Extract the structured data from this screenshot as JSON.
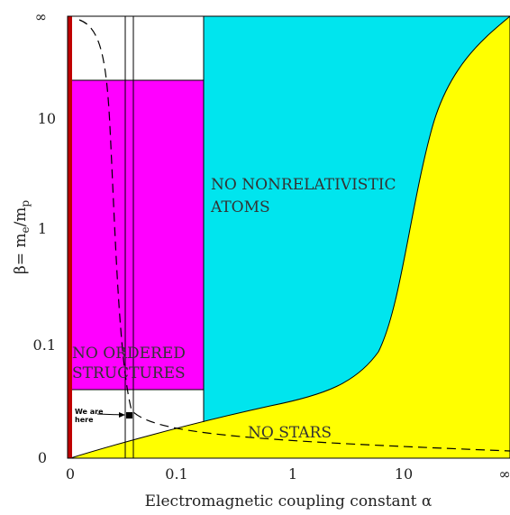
{
  "chart_data": {
    "type": "area",
    "xlabel": "Electromagnetic coupling constant α",
    "ylabel_main": "β= m",
    "ylabel_sub_e": "e",
    "ylabel_slash": "/m",
    "ylabel_sub_p": "p",
    "x_ticks": [
      "0",
      "0.1",
      "1",
      "10",
      "∞"
    ],
    "y_ticks": [
      "0",
      "0.1",
      "1",
      "10",
      "∞"
    ],
    "regions": [
      {
        "label_lines": [
          "NO ORDERED",
          "STRUCTURES"
        ],
        "color": "#ff00ff"
      },
      {
        "label_lines": [
          "NO NONRELATIVISTIC",
          "ATOMS"
        ],
        "color": "#00e5ee"
      },
      {
        "label_lines": [
          "NO STARS"
        ],
        "color": "#ffff00"
      }
    ],
    "annotation": {
      "lines": [
        "We are",
        "here"
      ]
    },
    "colors": {
      "left_bar": "#c00000",
      "magenta": "#ff00ff",
      "cyan": "#00e5ee",
      "yellow": "#ffff00"
    }
  }
}
